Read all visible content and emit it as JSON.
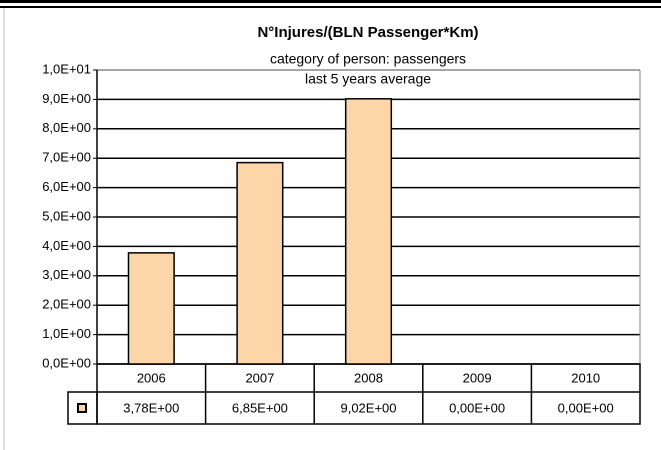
{
  "chart_data": {
    "type": "bar",
    "title": "N°Injures/(BLN Passenger*Km)",
    "subtitle": [
      "category of person: passengers",
      "last 5 years average"
    ],
    "categories": [
      "2006",
      "2007",
      "2008",
      "2009",
      "2010"
    ],
    "values": [
      3.78,
      6.85,
      9.02,
      0,
      0
    ],
    "value_labels": [
      "3,78E+00",
      "6,85E+00",
      "9,02E+00",
      "0,00E+00",
      "0,00E+00"
    ],
    "color": "#fcd5a8",
    "ylim": [
      0,
      10
    ],
    "yticks": [
      {
        "value": 0,
        "label": "0,0E+00"
      },
      {
        "value": 1,
        "label": "1,0E+00"
      },
      {
        "value": 2,
        "label": "2,0E+00"
      },
      {
        "value": 3,
        "label": "3,0E+00"
      },
      {
        "value": 4,
        "label": "4,0E+00"
      },
      {
        "value": 5,
        "label": "5,0E+00"
      },
      {
        "value": 6,
        "label": "6,0E+00"
      },
      {
        "value": 7,
        "label": "7,0E+00"
      },
      {
        "value": 8,
        "label": "8,0E+00"
      },
      {
        "value": 9,
        "label": "9,0E+00"
      },
      {
        "value": 10,
        "label": "1,0E+01"
      }
    ],
    "grid": true
  }
}
